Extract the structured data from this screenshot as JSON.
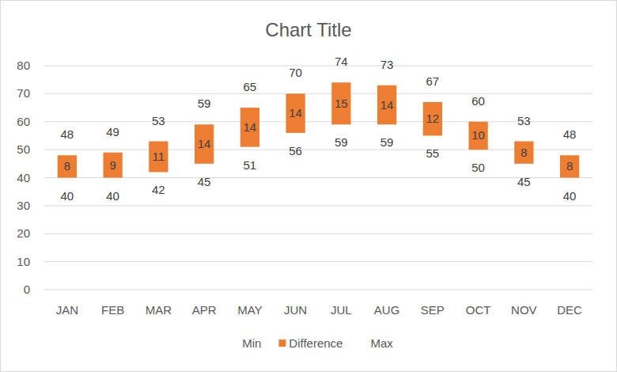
{
  "chart_data": {
    "type": "bar",
    "title": "Chart Title",
    "stacked": true,
    "data_labels": true,
    "grid": true,
    "legend": "bottom",
    "categories": [
      "JAN",
      "FEB",
      "MAR",
      "APR",
      "MAY",
      "JUN",
      "JUL",
      "AUG",
      "SEP",
      "OCT",
      "NOV",
      "DEC"
    ],
    "ylim": [
      0,
      80
    ],
    "yticks": [
      0,
      10,
      20,
      30,
      40,
      50,
      60,
      70,
      80
    ],
    "series": [
      {
        "name": "Min",
        "type": "bar",
        "color": "none",
        "values": [
          40,
          40,
          42,
          45,
          51,
          56,
          59,
          59,
          55,
          50,
          45,
          40
        ]
      },
      {
        "name": "Difference",
        "type": "bar",
        "color": "#ed7d31",
        "values": [
          8,
          9,
          11,
          14,
          14,
          14,
          15,
          14,
          12,
          10,
          8,
          8
        ]
      },
      {
        "name": "Max",
        "type": "line",
        "color": "none",
        "line_style": "none",
        "marker": "none",
        "values": [
          48,
          49,
          53,
          59,
          65,
          70,
          74,
          73,
          67,
          60,
          53,
          48
        ]
      }
    ]
  }
}
